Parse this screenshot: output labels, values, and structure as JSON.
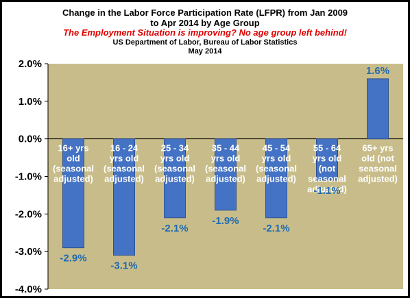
{
  "header": {
    "title_line1": "Change in the Labor Force Participation Rate (LFPR) from Jan 2009",
    "title_line2": "to Apr 2014 by Age Group",
    "subtitle": "The Employment Situation is improving?  No age group left behind!",
    "source_line1": "US Department of Labor, Bureau of Labor Statistics",
    "source_line2": "May 2014"
  },
  "colors": {
    "plot_background": "#c8bd8a",
    "bar_fill": "#4472c4",
    "bar_stroke": "#2f528f",
    "data_label": "#1f6ab0",
    "category_label": "#ffffff",
    "subtitle": "#e00000"
  },
  "chart_data": {
    "type": "bar",
    "title": "Change in the Labor Force Participation Rate (LFPR) from Jan 2009 to Apr 2014 by Age Group",
    "subtitle": "The Employment Situation is improving?  No age group left behind!",
    "categories": [
      [
        "16+ yrs",
        "old",
        "(seasonal",
        "adjusted)"
      ],
      [
        "16 - 24",
        "yrs old",
        "(seasonal",
        "adjusted)"
      ],
      [
        "25 - 34",
        "yrs old",
        "(seasonal",
        "adjusted)"
      ],
      [
        "35 - 44",
        "yrs old",
        "(seasonal",
        "adjusted)"
      ],
      [
        "45 - 54",
        "yrs old",
        "(seasonal",
        "adjusted)"
      ],
      [
        "55 - 64",
        "yrs old",
        "(not",
        "seasonal",
        "adjusted)"
      ],
      [
        "65+ yrs",
        "old (not",
        "seasonal",
        "adjusted)"
      ]
    ],
    "values": [
      -2.9,
      -3.1,
      -2.1,
      -1.9,
      -2.1,
      -1.1,
      1.6
    ],
    "value_labels": [
      "-2.9%",
      "-3.1%",
      "-2.1%",
      "-1.9%",
      "-2.1%",
      "-1.1%",
      "1.6%"
    ],
    "ylim": [
      -4.0,
      2.0
    ],
    "y_ticks": [
      2.0,
      1.0,
      0.0,
      -1.0,
      -2.0,
      -3.0,
      -4.0
    ],
    "y_tick_labels": [
      "2.0%",
      "1.0%",
      "0.0%",
      "-1.0%",
      "-2.0%",
      "-3.0%",
      "-4.0%"
    ],
    "xlabel": "",
    "ylabel": "",
    "grid": false,
    "legend": "none"
  }
}
